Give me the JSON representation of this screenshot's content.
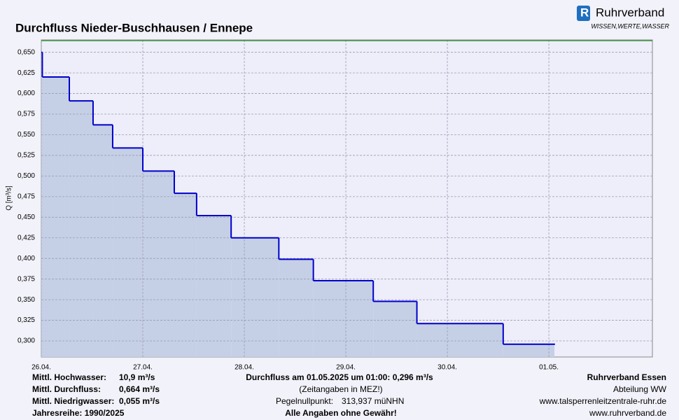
{
  "logo": {
    "name": "Ruhrverband",
    "slogan": "WISSEN,WERTE,WASSER"
  },
  "chart_data": {
    "type": "step-area",
    "title": "Durchfluss Nieder-Buschhausen / Ennepe",
    "y_label": "Q [m³/s]",
    "xlim": [
      0,
      6.02
    ],
    "ylim": [
      0.2805,
      0.665
    ],
    "xticks": [
      {
        "value": 0,
        "label": "26.04."
      },
      {
        "value": 1,
        "label": "27.04."
      },
      {
        "value": 2,
        "label": "28.04."
      },
      {
        "value": 3,
        "label": "29.04."
      },
      {
        "value": 4,
        "label": "30.04."
      },
      {
        "value": 5,
        "label": "01.05."
      }
    ],
    "yticks": [
      {
        "value": 0.3,
        "label": "0,300"
      },
      {
        "value": 0.325,
        "label": "0,325"
      },
      {
        "value": 0.35,
        "label": "0,350"
      },
      {
        "value": 0.375,
        "label": "0,375"
      },
      {
        "value": 0.4,
        "label": "0,400"
      },
      {
        "value": 0.425,
        "label": "0,425"
      },
      {
        "value": 0.45,
        "label": "0,450"
      },
      {
        "value": 0.475,
        "label": "0,475"
      },
      {
        "value": 0.5,
        "label": "0,500"
      },
      {
        "value": 0.525,
        "label": "0,525"
      },
      {
        "value": 0.55,
        "label": "0,550"
      },
      {
        "value": 0.575,
        "label": "0,575"
      },
      {
        "value": 0.6,
        "label": "0,600"
      },
      {
        "value": 0.625,
        "label": "0,625"
      },
      {
        "value": 0.65,
        "label": "0,650"
      }
    ],
    "grid": true,
    "reference_lines": [
      {
        "value": 0.664,
        "color": "#008000"
      }
    ],
    "series": [
      {
        "name": "Durchfluss",
        "color": "#0000cc",
        "fill": "#c5d0e6",
        "x": [
          0,
          0.01,
          0.276,
          0.51,
          0.703,
          1.0,
          1.31,
          1.53,
          1.87,
          2.34,
          2.68,
          3.27,
          3.7,
          4.55,
          5.055
        ],
        "values": [
          0.65,
          0.62,
          0.591,
          0.562,
          0.534,
          0.506,
          0.479,
          0.452,
          0.425,
          0.399,
          0.373,
          0.348,
          0.321,
          0.296,
          0.296
        ]
      }
    ]
  },
  "footer": {
    "left": [
      {
        "label": "Mittl. Hochwasser:",
        "value": "10,9 m³/s",
        "color": "#e00000"
      },
      {
        "label": "Mittl. Durchfluss:",
        "value": "0,664 m³/s",
        "color": "#009900"
      },
      {
        "label": "Mittl. Niedrigwasser:",
        "value": "0,055 m³/s",
        "color": "#b05050"
      }
    ],
    "series_years": "Jahresreihe: 1990/2025",
    "current": "Durchfluss am 01.05.2025 um 01:00: 0,296 m³/s",
    "timezone": "(Zeitangaben in MEZ!)",
    "gauge_zero_label": "Pegelnullpunkt:",
    "gauge_zero_value": "313,937 müNHN",
    "disclaimer": "Alle Angaben ohne Gewähr!",
    "right": [
      "Ruhrverband Essen",
      "Abteilung WW",
      "www.talsperrenleitzentrale-ruhr.de",
      "www.ruhrverband.de"
    ]
  }
}
